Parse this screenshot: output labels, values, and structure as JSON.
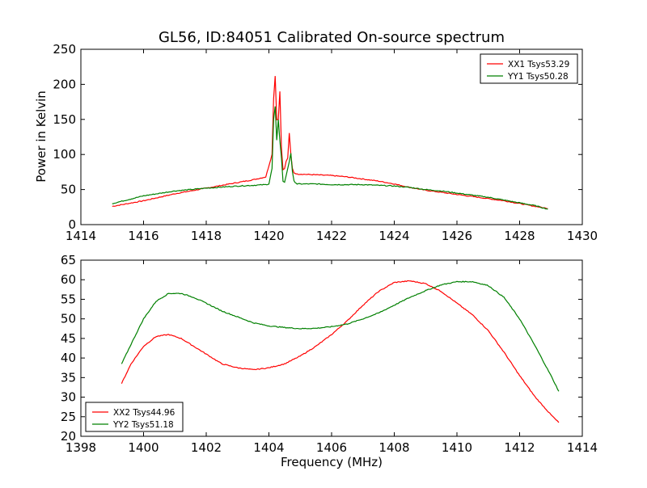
{
  "chart_data": [
    {
      "type": "line",
      "title": "GL56, ID:84051 Calibrated On-source spectrum",
      "xlabel": "",
      "ylabel": "Power in Kelvin",
      "xlim": [
        1414,
        1430
      ],
      "ylim": [
        0,
        250
      ],
      "xticks": [
        "1414",
        "1416",
        "1418",
        "1420",
        "1422",
        "1424",
        "1426",
        "1428",
        "1430"
      ],
      "yticks": [
        "0",
        "50",
        "100",
        "150",
        "200",
        "250"
      ],
      "grid": false,
      "legend_position": "top-right",
      "series": [
        {
          "name": "XX1 Tsys53.29",
          "color": "#ff0000",
          "x": [
            1415.0,
            1416.0,
            1417.0,
            1418.0,
            1419.0,
            1419.5,
            1419.9,
            1420.1,
            1420.15,
            1420.2,
            1420.25,
            1420.3,
            1420.35,
            1420.4,
            1420.45,
            1420.5,
            1420.55,
            1420.6,
            1420.65,
            1420.7,
            1420.75,
            1420.8,
            1420.9,
            1421.0,
            1421.5,
            1422.0,
            1422.5,
            1423.0,
            1423.5,
            1424.0,
            1424.5,
            1425.0,
            1425.5,
            1426.0,
            1426.5,
            1427.0,
            1427.5,
            1428.0,
            1428.5,
            1428.9
          ],
          "y": [
            26,
            34,
            44,
            52,
            60,
            64,
            68,
            100,
            180,
            212,
            150,
            150,
            190,
            110,
            78,
            80,
            90,
            95,
            130,
            100,
            80,
            74,
            72,
            72,
            71,
            70,
            68,
            65,
            62,
            58,
            53,
            49,
            46,
            43,
            40,
            37,
            34,
            30,
            26,
            23
          ]
        },
        {
          "name": "YY1 Tsys50.28",
          "color": "#008000",
          "x": [
            1415.0,
            1416.0,
            1417.0,
            1418.0,
            1419.0,
            1419.5,
            1419.9,
            1420.0,
            1420.1,
            1420.15,
            1420.2,
            1420.25,
            1420.3,
            1420.35,
            1420.4,
            1420.45,
            1420.5,
            1420.55,
            1420.6,
            1420.65,
            1420.7,
            1420.75,
            1420.8,
            1420.9,
            1421.0,
            1421.5,
            1422.0,
            1422.5,
            1423.0,
            1423.5,
            1424.0,
            1424.5,
            1425.0,
            1425.5,
            1426.0,
            1426.5,
            1427.0,
            1427.5,
            1428.0,
            1428.5,
            1428.9
          ],
          "y": [
            30,
            41,
            48,
            52,
            55,
            56,
            57,
            58,
            80,
            150,
            168,
            120,
            150,
            120,
            95,
            62,
            60,
            70,
            80,
            90,
            102,
            75,
            62,
            58,
            58,
            58,
            57,
            57,
            57,
            56,
            55,
            53,
            50,
            48,
            45,
            42,
            39,
            35,
            31,
            27,
            22
          ]
        }
      ]
    },
    {
      "type": "line",
      "title": "",
      "xlabel": "Frequency (MHz)",
      "ylabel": "",
      "xlim": [
        1398,
        1414
      ],
      "ylim": [
        20,
        65
      ],
      "xticks": [
        "1398",
        "1400",
        "1402",
        "1404",
        "1406",
        "1408",
        "1410",
        "1412",
        "1414"
      ],
      "yticks": [
        "20",
        "25",
        "30",
        "35",
        "40",
        "45",
        "50",
        "55",
        "60",
        "65"
      ],
      "grid": false,
      "legend_position": "bottom-left",
      "series": [
        {
          "name": "XX2 Tsys44.96",
          "color": "#ff0000",
          "x": [
            1399.3,
            1399.6,
            1400.0,
            1400.4,
            1400.8,
            1401.2,
            1401.6,
            1402.0,
            1402.5,
            1403.0,
            1403.5,
            1404.0,
            1404.5,
            1405.0,
            1405.5,
            1406.0,
            1406.5,
            1407.0,
            1407.5,
            1408.0,
            1408.5,
            1409.0,
            1409.5,
            1410.0,
            1410.5,
            1411.0,
            1411.5,
            1412.0,
            1412.5,
            1413.0,
            1413.25
          ],
          "y": [
            33.5,
            38.5,
            43,
            45.5,
            46,
            45,
            43,
            41,
            38.5,
            37.5,
            37,
            37.5,
            38.5,
            40.5,
            43,
            46,
            49.5,
            53.5,
            57,
            59.3,
            59.7,
            59,
            57,
            54,
            51,
            47,
            41.5,
            35.5,
            30,
            25.5,
            23.5
          ]
        },
        {
          "name": "YY2 Tsys51.18",
          "color": "#008000",
          "x": [
            1399.3,
            1399.6,
            1400.0,
            1400.4,
            1400.8,
            1401.2,
            1401.6,
            1402.0,
            1402.5,
            1403.0,
            1403.5,
            1404.0,
            1404.5,
            1405.0,
            1405.5,
            1406.0,
            1406.5,
            1407.0,
            1407.5,
            1408.0,
            1408.5,
            1409.0,
            1409.5,
            1410.0,
            1410.5,
            1411.0,
            1411.5,
            1412.0,
            1412.5,
            1413.0,
            1413.25
          ],
          "y": [
            38.5,
            43.5,
            50,
            54.5,
            56.5,
            56.5,
            55.5,
            54,
            52,
            50.5,
            49,
            48.2,
            47.8,
            47.5,
            47.6,
            48,
            48.7,
            50,
            51.5,
            53.5,
            55.5,
            57.2,
            58.7,
            59.5,
            59.5,
            58.5,
            55.5,
            50,
            43,
            35.5,
            31.5
          ]
        }
      ]
    }
  ]
}
